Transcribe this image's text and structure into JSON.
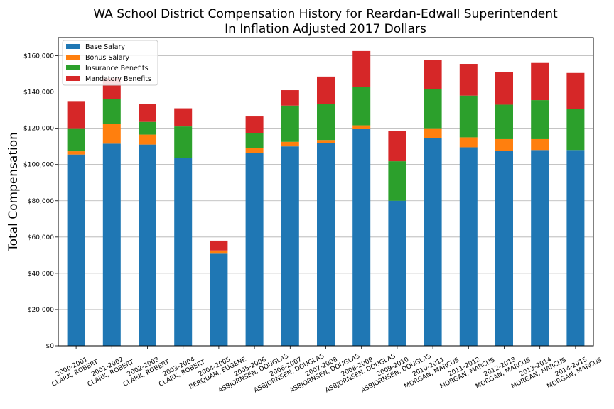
{
  "chart_data": {
    "type": "bar",
    "stacked": true,
    "title": "WA School District Compensation History for Reardan-Edwall Superintendent",
    "subtitle": "In Inflation Adjusted 2017 Dollars",
    "ylabel": "Total Compensation",
    "xlabel": "",
    "ylim": [
      0,
      170000
    ],
    "yticks": [
      0,
      20000,
      40000,
      60000,
      80000,
      100000,
      120000,
      140000,
      160000
    ],
    "ytick_labels": [
      "$0",
      "$20,000",
      "$40,000",
      "$60,000",
      "$80,000",
      "$100,000",
      "$120,000",
      "$140,000",
      "$160,000"
    ],
    "grid": "horizontal",
    "legend_position": "top-left",
    "categories": [
      [
        "2000-2001",
        "CLARK, ROBERT"
      ],
      [
        "2001-2002",
        "CLARK, ROBERT"
      ],
      [
        "2002-2003",
        "CLARK, ROBERT"
      ],
      [
        "2003-2004",
        "CLARK, ROBERT"
      ],
      [
        "2004-2005",
        "BERQUAM, EUGENE"
      ],
      [
        "2005-2006",
        "ASBJORNSEN, DOUGLAS"
      ],
      [
        "2006-2007",
        "ASBJORNSEN, DOUGLAS"
      ],
      [
        "2007-2008",
        "ASBJORNSEN, DOUGLAS"
      ],
      [
        "2008-2009",
        "ASBJORNSEN, DOUGLAS"
      ],
      [
        "2009-2010",
        "ASBJORNSEN, DOUGLAS"
      ],
      [
        "2010-2011",
        "MORGAN, MARCUS"
      ],
      [
        "2011-2012",
        "MORGAN, MARCUS"
      ],
      [
        "2012-2013",
        "MORGAN, MARCUS"
      ],
      [
        "2013-2014",
        "MORGAN, MARCUS"
      ],
      [
        "2014-2015",
        "MORGAN, MARCUS"
      ]
    ],
    "series": [
      {
        "name": "Base Salary",
        "color": "#1f77b4",
        "values": [
          105500,
          111500,
          111000,
          103500,
          50800,
          106500,
          110000,
          112000,
          119800,
          80000,
          114500,
          109500,
          107500,
          108000,
          108000
        ]
      },
      {
        "name": "Bonus Salary",
        "color": "#ff7f0e",
        "values": [
          1800,
          11000,
          5500,
          0,
          1800,
          2500,
          2500,
          1500,
          1800,
          0,
          5500,
          5500,
          6500,
          6000,
          0
        ]
      },
      {
        "name": "Insurance Benefits",
        "color": "#2ca02c",
        "values": [
          12700,
          13500,
          7000,
          17500,
          0,
          8500,
          20000,
          20000,
          21000,
          21800,
          21500,
          23000,
          19000,
          21500,
          22500
        ]
      },
      {
        "name": "Mandatory Benefits",
        "color": "#d62728",
        "values": [
          15000,
          11500,
          10000,
          10000,
          5400,
          9000,
          8500,
          15000,
          20000,
          16500,
          16000,
          17500,
          18000,
          20500,
          20000
        ]
      }
    ]
  }
}
